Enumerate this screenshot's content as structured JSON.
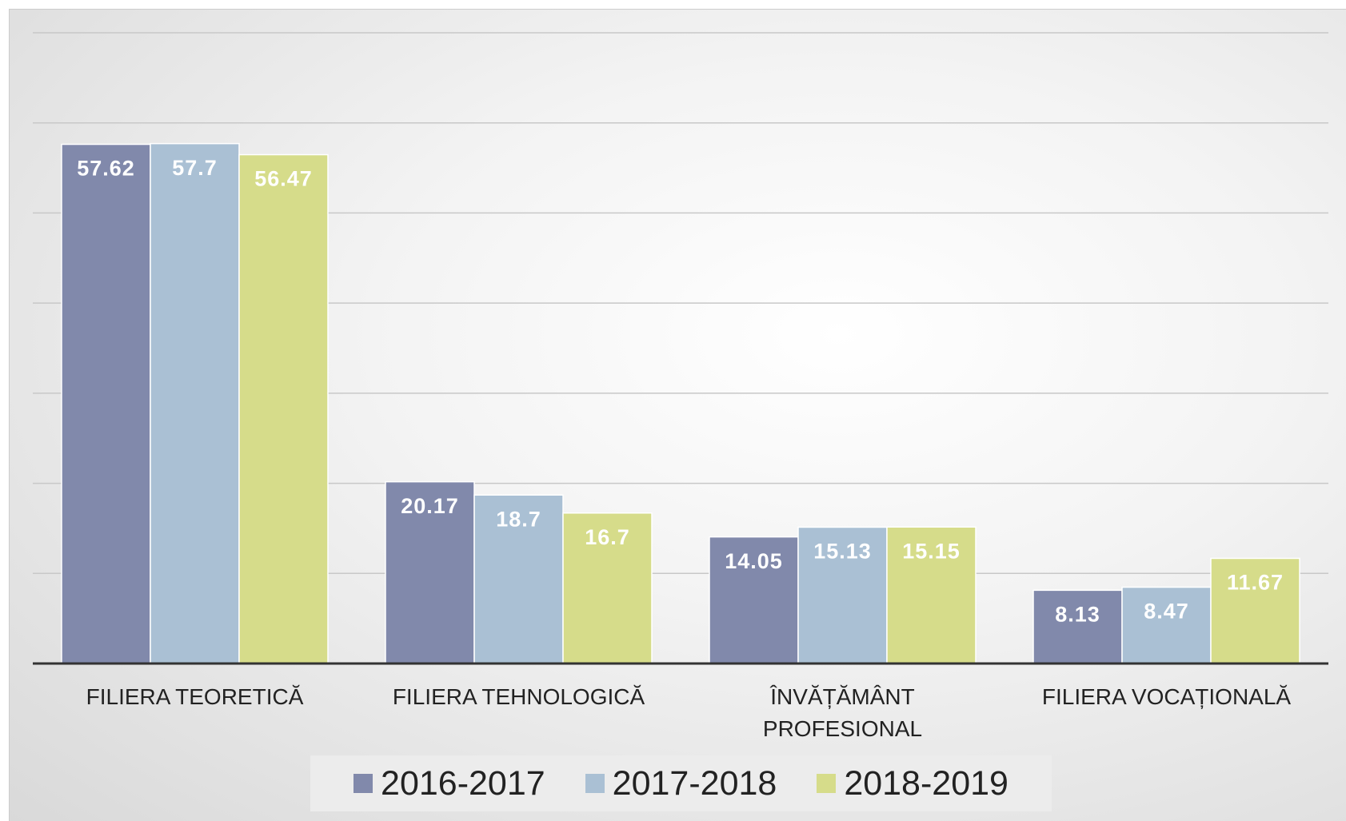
{
  "chart_data": {
    "type": "bar",
    "categories": [
      "FILIERA TEORETICĂ",
      "FILIERA TEHNOLOGICĂ",
      "ÎNVĂȚĂMÂNT PROFESIONAL",
      "FILIERA VOCAȚIONALĂ"
    ],
    "series": [
      {
        "name": "2016-2017",
        "color": "#8189ab",
        "values": [
          57.62,
          20.17,
          14.05,
          8.13
        ]
      },
      {
        "name": "2017-2018",
        "color": "#aac0d4",
        "values": [
          57.7,
          18.7,
          15.13,
          8.47
        ]
      },
      {
        "name": "2018-2019",
        "color": "#d6dc8a",
        "values": [
          56.47,
          16.7,
          15.15,
          11.67
        ]
      }
    ],
    "ylim": [
      0,
      70
    ],
    "yticks": [
      0,
      10,
      20,
      30,
      40,
      50,
      60,
      70
    ],
    "grid": true,
    "legend": "bottom"
  }
}
